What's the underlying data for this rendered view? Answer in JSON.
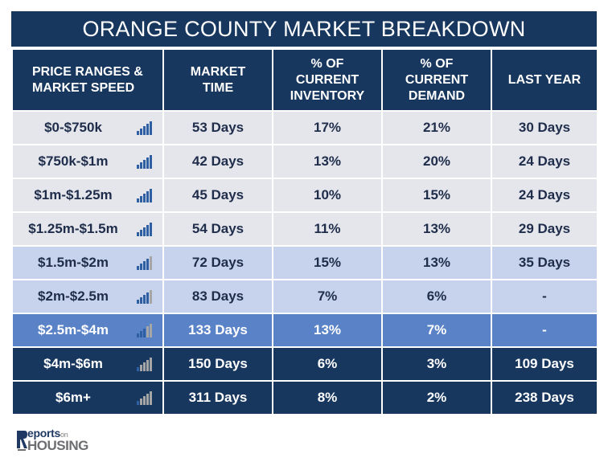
{
  "title": "ORANGE COUNTY MARKET BREAKDOWN",
  "headers": {
    "price_ranges": [
      "PRICE RANGES &",
      "MARKET SPEED"
    ],
    "market_time": [
      "MARKET",
      "TIME"
    ],
    "inventory": [
      "% OF",
      "CURRENT",
      "INVENTORY"
    ],
    "demand": [
      "% OF",
      "CURRENT",
      "DEMAND"
    ],
    "last_year": [
      "LAST YEAR"
    ]
  },
  "rows": [
    {
      "range": "$0-$750k",
      "market_time": "53 Days",
      "inventory": "17%",
      "demand": "21%",
      "last_year": "30 Days",
      "speed_icon": "bar-signal-icon-full"
    },
    {
      "range": "$750k-$1m",
      "market_time": "42 Days",
      "inventory": "13%",
      "demand": "20%",
      "last_year": "24 Days",
      "speed_icon": "bar-signal-icon-full"
    },
    {
      "range": "$1m-$1.25m",
      "market_time": "45 Days",
      "inventory": "10%",
      "demand": "15%",
      "last_year": "24 Days",
      "speed_icon": "bar-signal-icon-full"
    },
    {
      "range": "$1.25m-$1.5m",
      "market_time": "54 Days",
      "inventory": "11%",
      "demand": "13%",
      "last_year": "29 Days",
      "speed_icon": "bar-signal-icon-full"
    },
    {
      "range": "$1.5m-$2m",
      "market_time": "72 Days",
      "inventory": "15%",
      "demand": "13%",
      "last_year": "35 Days",
      "speed_icon": "bar-signal-icon-partial"
    },
    {
      "range": "$2m-$2.5m",
      "market_time": "83 Days",
      "inventory": "7%",
      "demand": "6%",
      "last_year": "-",
      "speed_icon": "bar-signal-icon-partial"
    },
    {
      "range": "$2.5m-$4m",
      "market_time": "133 Days",
      "inventory": "13%",
      "demand": "7%",
      "last_year": "-",
      "speed_icon": "bar-signal-icon-low"
    },
    {
      "range": "$4m-$6m",
      "market_time": "150 Days",
      "inventory": "6%",
      "demand": "3%",
      "last_year": "109 Days",
      "speed_icon": "bar-signal-icon-low"
    },
    {
      "range": "$6m+",
      "market_time": "311 Days",
      "inventory": "8%",
      "demand": "2%",
      "last_year": "238 Days",
      "speed_icon": "bar-signal-icon-low"
    }
  ],
  "row_styles": [
    "r-light",
    "r-light",
    "r-light",
    "r-light",
    "r-mid",
    "r-mid",
    "r-blue",
    "r-dark",
    "r-dark"
  ],
  "speed_levels": [
    1,
    1,
    1,
    1,
    0.75,
    0.75,
    0.5,
    0.25,
    0.25
  ],
  "logo": {
    "line1": "eports",
    "line1_suffix": "on",
    "line2": "HOUSING"
  },
  "colors": {
    "header_bg": "#17375e",
    "row_light": "#e4e6ec",
    "row_mid": "#c7d3ec",
    "row_blue": "#5a82c7",
    "row_dark": "#17375e",
    "bar_blue": "#2e5fa3",
    "bar_gray": "#a6a6a6"
  }
}
